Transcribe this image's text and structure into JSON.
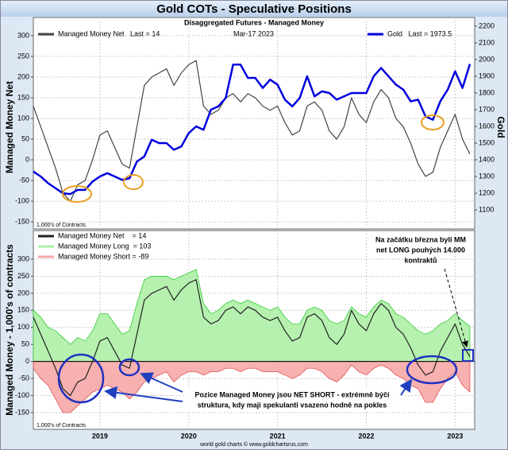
{
  "footer": "world gold charts © www.goldchartsrus.com",
  "chart_data": [
    {
      "type": "line",
      "title": "Gold COTs - Speculative Positions",
      "subtitle": "Disaggregated Futures - Managed Money",
      "date": "Mar-17  2023",
      "units_label": "1,000's of Contracts",
      "ylabel": "Managed Money Net",
      "y2label": "Gold",
      "legend": "top",
      "grid": true,
      "categories": [
        null,
        null,
        null,
        null,
        null,
        null,
        null,
        null,
        null,
        "2019",
        null,
        null,
        null,
        null,
        null,
        null,
        null,
        null,
        null,
        null,
        null,
        "2020",
        null,
        null,
        null,
        null,
        null,
        null,
        null,
        null,
        null,
        null,
        null,
        "2021",
        null,
        null,
        null,
        null,
        null,
        null,
        null,
        null,
        null,
        null,
        null,
        "2022",
        null,
        null,
        null,
        null,
        null,
        null,
        null,
        null,
        null,
        null,
        null,
        "2023",
        null,
        null
      ],
      "ylim": [
        -167,
        344
      ],
      "yticks": [
        -150,
        -100,
        -50,
        0,
        50,
        100,
        150,
        200,
        250,
        300
      ],
      "y2lim": [
        986,
        2252
      ],
      "y2ticks": [
        1100,
        1200,
        1300,
        1400,
        1500,
        1600,
        1700,
        1800,
        1900,
        2000,
        2100,
        2200
      ],
      "series": [
        {
          "name": "Managed Money Net   Last = 14",
          "color": "#444444",
          "values": [
            130,
            80,
            30,
            -20,
            -80,
            -100,
            -60,
            -50,
            0,
            60,
            70,
            30,
            -10,
            -20,
            80,
            180,
            200,
            210,
            220,
            180,
            210,
            230,
            240,
            130,
            110,
            120,
            150,
            160,
            140,
            160,
            150,
            130,
            120,
            130,
            90,
            60,
            70,
            130,
            140,
            120,
            70,
            50,
            80,
            150,
            110,
            90,
            140,
            170,
            150,
            100,
            80,
            40,
            -10,
            -40,
            -30,
            30,
            70,
            110,
            50,
            14
          ]
        },
        {
          "name": "Gold   Last = 1973.5",
          "color": "#0000dd",
          "axis": "y2",
          "values": [
            1330,
            1300,
            1260,
            1230,
            1200,
            1195,
            1220,
            1220,
            1270,
            1300,
            1320,
            1300,
            1280,
            1290,
            1390,
            1420,
            1520,
            1500,
            1500,
            1460,
            1480,
            1560,
            1600,
            1580,
            1700,
            1720,
            1770,
            1970,
            1970,
            1890,
            1890,
            1830,
            1880,
            1850,
            1760,
            1720,
            1770,
            1900,
            1780,
            1810,
            1800,
            1760,
            1780,
            1800,
            1800,
            1800,
            1900,
            1950,
            1900,
            1850,
            1820,
            1750,
            1760,
            1660,
            1640,
            1750,
            1820,
            1930,
            1830,
            1973.5
          ]
        }
      ]
    },
    {
      "type": "area",
      "units_label": "1,000's of Contracts",
      "ylabel": "Managed Money - 1,000's of contracts",
      "legend": "top-left",
      "grid": true,
      "annotations": [
        [
          "Na začátku března byli MM",
          "net LONG pouhých 14.000",
          "kontraktů"
        ],
        [
          "Pozice Managed Money jsou NET SHORT - extrémně býčí",
          "struktura, kdy mají spekulanti vsazeno hodně na pokles"
        ]
      ],
      "categories": [
        null,
        null,
        null,
        null,
        null,
        null,
        null,
        null,
        null,
        "2019",
        null,
        null,
        null,
        null,
        null,
        null,
        null,
        null,
        null,
        null,
        null,
        "2020",
        null,
        null,
        null,
        null,
        null,
        null,
        null,
        null,
        null,
        null,
        null,
        "2021",
        null,
        null,
        null,
        null,
        null,
        null,
        null,
        null,
        null,
        null,
        null,
        "2022",
        null,
        null,
        null,
        null,
        null,
        null,
        null,
        null,
        null,
        null,
        null,
        "2023",
        null,
        null
      ],
      "ylim": [
        -199,
        384
      ],
      "yticks": [
        -150,
        -100,
        -50,
        0,
        50,
        100,
        150,
        200,
        250,
        300
      ],
      "series": [
        {
          "name": "Managed Money Net    = 14",
          "color": "#222222",
          "values": [
            130,
            80,
            30,
            -20,
            -80,
            -100,
            -60,
            -50,
            0,
            60,
            70,
            30,
            -10,
            -20,
            80,
            180,
            200,
            210,
            220,
            180,
            210,
            230,
            240,
            130,
            110,
            120,
            150,
            160,
            140,
            160,
            150,
            130,
            120,
            130,
            90,
            60,
            70,
            130,
            140,
            120,
            70,
            50,
            80,
            150,
            110,
            90,
            140,
            170,
            150,
            100,
            80,
            40,
            -10,
            -40,
            -30,
            30,
            70,
            110,
            50,
            14
          ]
        },
        {
          "name": "Managed Money Long  = 103",
          "color": "#33cc33",
          "fill": "#aef0a6",
          "values": [
            150,
            130,
            100,
            90,
            70,
            50,
            70,
            60,
            90,
            140,
            140,
            110,
            80,
            90,
            170,
            240,
            250,
            250,
            250,
            240,
            250,
            260,
            270,
            170,
            140,
            150,
            170,
            180,
            170,
            180,
            170,
            160,
            150,
            160,
            130,
            110,
            110,
            150,
            160,
            150,
            120,
            110,
            120,
            160,
            140,
            130,
            160,
            180,
            170,
            140,
            130,
            110,
            90,
            80,
            90,
            110,
            120,
            140,
            120,
            103
          ]
        },
        {
          "name": "Managed Money Short = -89",
          "color": "#e05050",
          "fill": "#f6a8a8",
          "values": [
            -20,
            -50,
            -70,
            -110,
            -150,
            -150,
            -130,
            -110,
            -90,
            -80,
            -70,
            -80,
            -90,
            -110,
            -90,
            -60,
            -50,
            -40,
            -30,
            -60,
            -40,
            -30,
            -30,
            -40,
            -30,
            -30,
            -20,
            -20,
            -30,
            -20,
            -20,
            -30,
            -30,
            -30,
            -40,
            -50,
            -40,
            -20,
            -20,
            -30,
            -50,
            -60,
            -40,
            -10,
            -30,
            -40,
            -20,
            -10,
            -20,
            -40,
            -50,
            -70,
            -80,
            -120,
            -120,
            -80,
            -50,
            -30,
            -70,
            -89
          ]
        }
      ]
    }
  ]
}
